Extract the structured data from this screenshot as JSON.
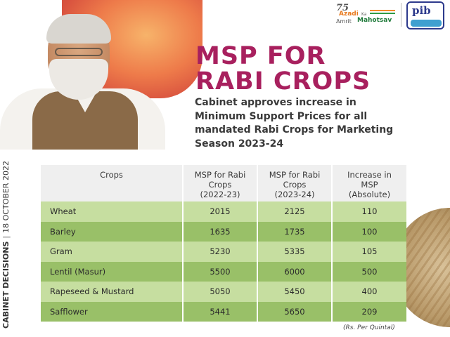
{
  "logos": {
    "azadi": {
      "number": "75",
      "line1": "Azadi",
      "ka": "Ka",
      "line2": "Amrit",
      "line3": "Mahotsav"
    },
    "pib": {
      "text": "pib"
    }
  },
  "headline": {
    "line1": "MSP FOR",
    "line2": "RABI CROPS"
  },
  "subheadline": "Cabinet approves increase in Minimum Support Prices for all mandated Rabi Crops for Marketing Season 2023-24",
  "side_label": {
    "category": "CABINET DECISIONS",
    "separator": "|",
    "date": "18 OCTOBER 2022"
  },
  "table": {
    "headers": [
      {
        "line1": "Crops",
        "line2": "",
        "line3": ""
      },
      {
        "line1": "MSP for Rabi",
        "line2": "Crops",
        "line3": "(2022-23)"
      },
      {
        "line1": "MSP for Rabi",
        "line2": "Crops",
        "line3": "(2023-24)"
      },
      {
        "line1": "Increase in",
        "line2": "MSP",
        "line3": "(Absolute)"
      }
    ],
    "rows": [
      {
        "crop": "Wheat",
        "msp_2022_23": "2015",
        "msp_2023_24": "2125",
        "increase": "110"
      },
      {
        "crop": "Barley",
        "msp_2022_23": "1635",
        "msp_2023_24": "1735",
        "increase": "100"
      },
      {
        "crop": "Gram",
        "msp_2022_23": "5230",
        "msp_2023_24": "5335",
        "increase": "105"
      },
      {
        "crop": "Lentil (Masur)",
        "msp_2022_23": "5500",
        "msp_2023_24": "6000",
        "increase": "500"
      },
      {
        "crop": "Rapeseed & Mustard",
        "msp_2022_23": "5050",
        "msp_2023_24": "5450",
        "increase": "400"
      },
      {
        "crop": "Safflower",
        "msp_2022_23": "5441",
        "msp_2023_24": "5650",
        "increase": "209"
      }
    ],
    "unit_note": "(Rs. Per Quintal)"
  },
  "colors": {
    "headline": "#a8205e",
    "row_light": "#c6dea0",
    "row_dark": "#99c068",
    "header_bg": "#efefef"
  }
}
